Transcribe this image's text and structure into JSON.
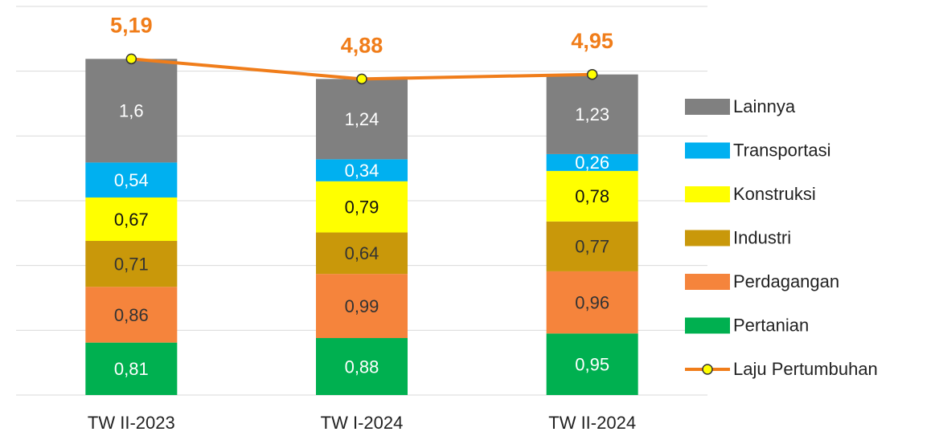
{
  "chart_data": {
    "type": "bar",
    "stacked": true,
    "categories": [
      "TW II-2023",
      "TW I-2024",
      "TW II-2024"
    ],
    "ylim": [
      0,
      6
    ],
    "yticks": [
      0,
      1,
      2,
      3,
      4,
      5,
      6
    ],
    "grid": true,
    "series": [
      {
        "name": "Pertanian",
        "color": "#00b050",
        "values": [
          0.81,
          0.88,
          0.95
        ],
        "value_labels": [
          "0,81",
          "0,88",
          "0,95"
        ]
      },
      {
        "name": "Perdagangan",
        "color": "#f5843c",
        "values": [
          0.86,
          0.99,
          0.96
        ],
        "value_labels": [
          "0,86",
          "0,99",
          "0,96"
        ]
      },
      {
        "name": "Industri",
        "color": "#c9980a",
        "values": [
          0.71,
          0.64,
          0.77
        ],
        "value_labels": [
          "0,71",
          "0,64",
          "0,77"
        ]
      },
      {
        "name": "Konstruksi",
        "color": "#ffff00",
        "values": [
          0.67,
          0.79,
          0.78
        ],
        "value_labels": [
          "0,67",
          "0,79",
          "0,78"
        ]
      },
      {
        "name": "Transportasi",
        "color": "#00b0f0",
        "values": [
          0.54,
          0.34,
          0.26
        ],
        "value_labels": [
          "0,54",
          "0,34",
          "0,26"
        ]
      },
      {
        "name": "Lainnya",
        "color": "#808080",
        "values": [
          1.6,
          1.24,
          1.23
        ],
        "value_labels": [
          "1,6",
          "1,24",
          "1,23"
        ]
      },
      {
        "name": "Laju Pertumbuhan",
        "type": "line",
        "color": "#f07d1a",
        "marker_color": "#ffff00",
        "values": [
          5.19,
          4.88,
          4.95
        ],
        "value_labels": [
          "5,19",
          "4,88",
          "4,95"
        ]
      }
    ]
  }
}
